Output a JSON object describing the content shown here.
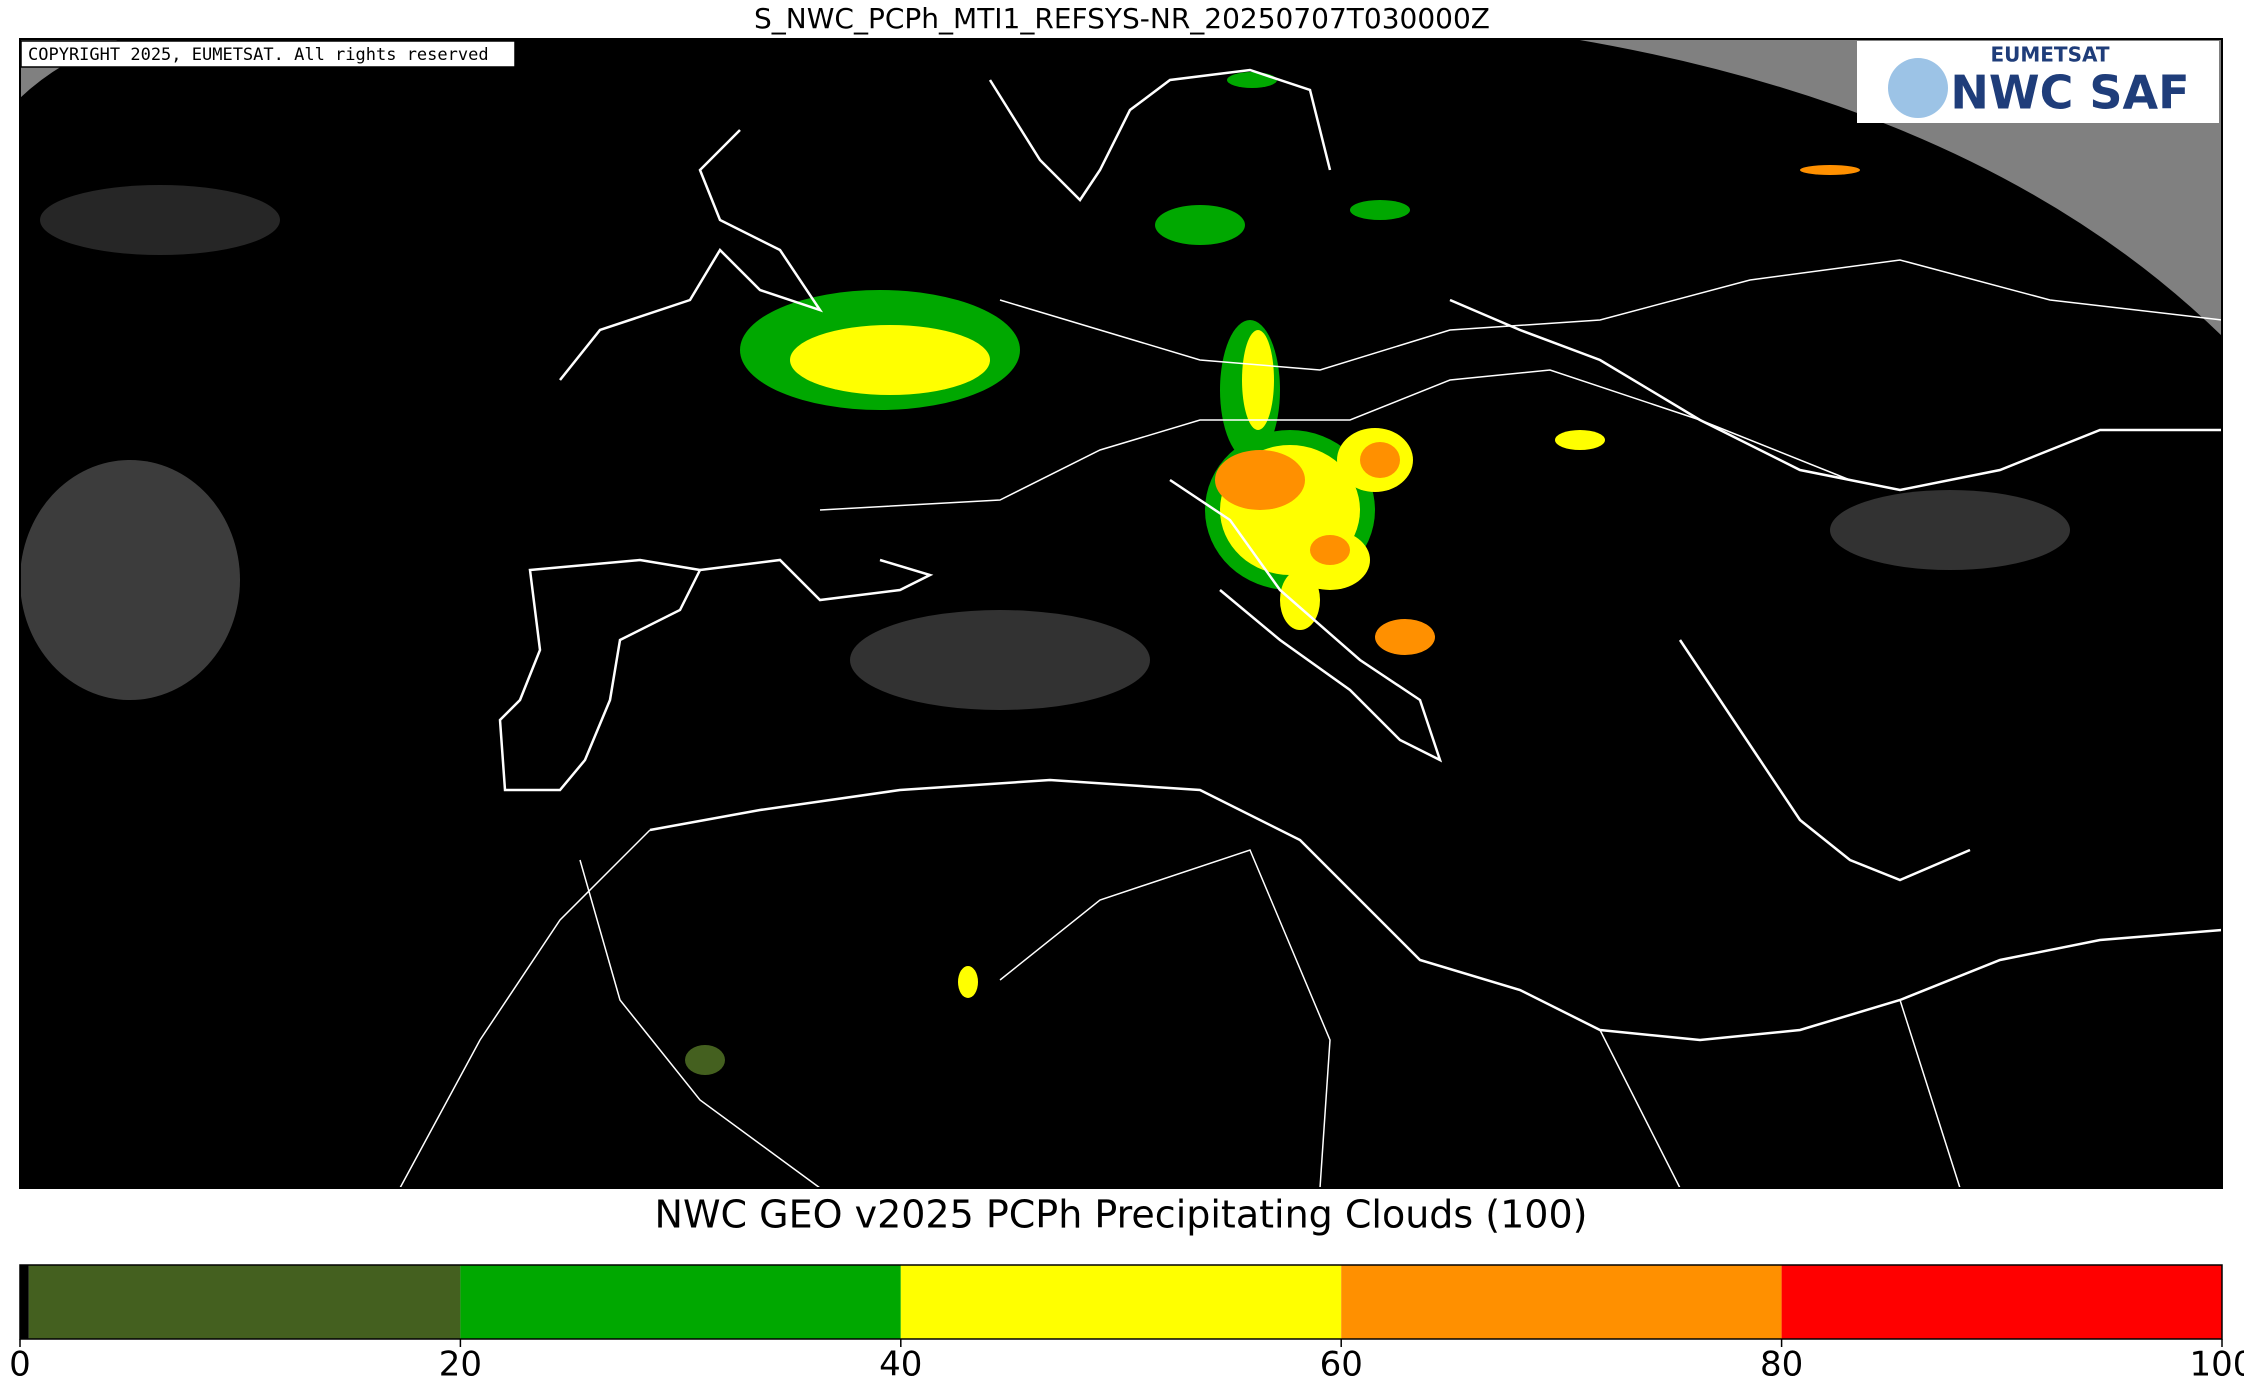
{
  "header": {
    "title": "S_NWC_PCPh_MTI1_REFSYS-NR_20250707T030000Z"
  },
  "map": {
    "copyright": "COPYRIGHT 2025, EUMETSAT. All rights reserved",
    "logo": {
      "top": "EUMETSAT",
      "main": "NWC SAF"
    }
  },
  "colorbar": {
    "label": "NWC GEO v2025 PCPh Precipitating Clouds (100)",
    "lim": [
      0,
      100
    ],
    "ticks": [
      0,
      20,
      40,
      60,
      80,
      100
    ],
    "segments": [
      {
        "from": 0,
        "to": 0.4,
        "color": "#000000"
      },
      {
        "from": 0.4,
        "to": 20,
        "color": "#44601f"
      },
      {
        "from": 20,
        "to": 40,
        "color": "#00a800"
      },
      {
        "from": 40,
        "to": 60,
        "color": "#ffff00"
      },
      {
        "from": 60,
        "to": 80,
        "color": "#ff9000"
      },
      {
        "from": 80,
        "to": 100,
        "color": "#ff0000"
      }
    ]
  }
}
